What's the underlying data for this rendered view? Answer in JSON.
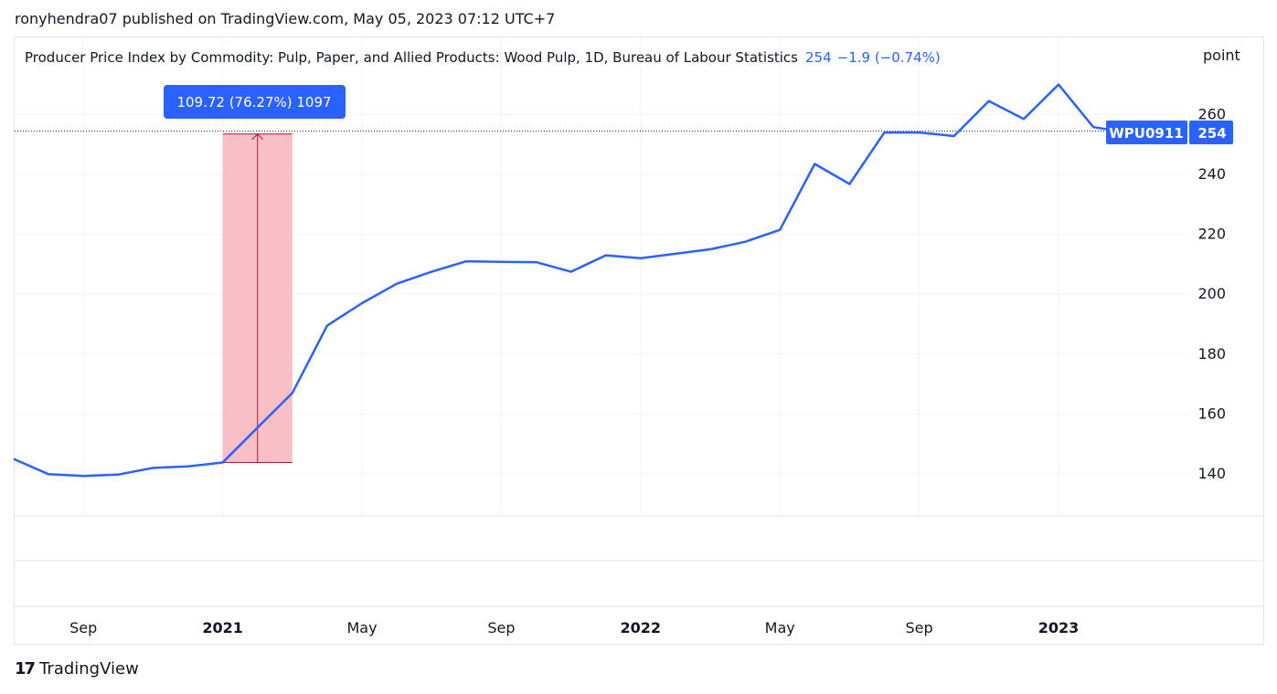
{
  "header": {
    "published_text": "ronyhendra07 published on TradingView.com, May 05, 2023 07:12 UTC+7"
  },
  "legend": {
    "title": "Producer Price Index by Commodity: Pulp, Paper, and Allied Products: Wood Pulp, 1D, Bureau of Labour Statistics",
    "last_value": "254",
    "change": "−1.9 (−0.74%)"
  },
  "axis": {
    "unit": "point"
  },
  "measure_tool": {
    "label": "109.72 (76.27%) 1097",
    "from_value": 143.8,
    "to_value": 253.5
  },
  "price_tag": {
    "symbol": "WPU0911",
    "value": "254"
  },
  "brand": {
    "logo": "17",
    "name": "TradingView"
  },
  "colors": {
    "line": "#2962ff",
    "measure_fill": "#f8bcc3",
    "measure_line": "#a31d34",
    "label_bg": "#2962ff"
  },
  "chart_data": {
    "type": "line",
    "series": [
      {
        "name": "WPU0911",
        "x": [
          "2020-07",
          "2020-08",
          "2020-09",
          "2020-10",
          "2020-11",
          "2020-12",
          "2021-01",
          "2021-02",
          "2021-03",
          "2021-04",
          "2021-05",
          "2021-06",
          "2021-07",
          "2021-08",
          "2021-09",
          "2021-10",
          "2021-11",
          "2021-12",
          "2022-01",
          "2022-02",
          "2022-03",
          "2022-04",
          "2022-05",
          "2022-06",
          "2022-07",
          "2022-08",
          "2022-09",
          "2022-10",
          "2022-11",
          "2022-12",
          "2023-01",
          "2023-02",
          "2023-03"
        ],
        "y": [
          145.0,
          139.9,
          139.3,
          139.8,
          142.0,
          142.5,
          143.8,
          155.5,
          167.0,
          189.5,
          197.0,
          203.5,
          207.5,
          211.0,
          210.8,
          210.7,
          207.5,
          213.0,
          212.0,
          213.5,
          215.0,
          217.5,
          221.5,
          243.5,
          236.8,
          254.0,
          254.0,
          252.8,
          264.5,
          258.5,
          270.0,
          255.8,
          254.0
        ]
      }
    ],
    "x_ticks": [
      "Sep",
      "2021",
      "May",
      "Sep",
      "2022",
      "May",
      "Sep",
      "2023"
    ],
    "y_ticks": [
      140,
      160,
      180,
      200,
      220,
      240,
      260
    ],
    "ylabel": "point",
    "ylim": [
      126,
      276
    ],
    "grid": true,
    "last_value_line": 254
  }
}
